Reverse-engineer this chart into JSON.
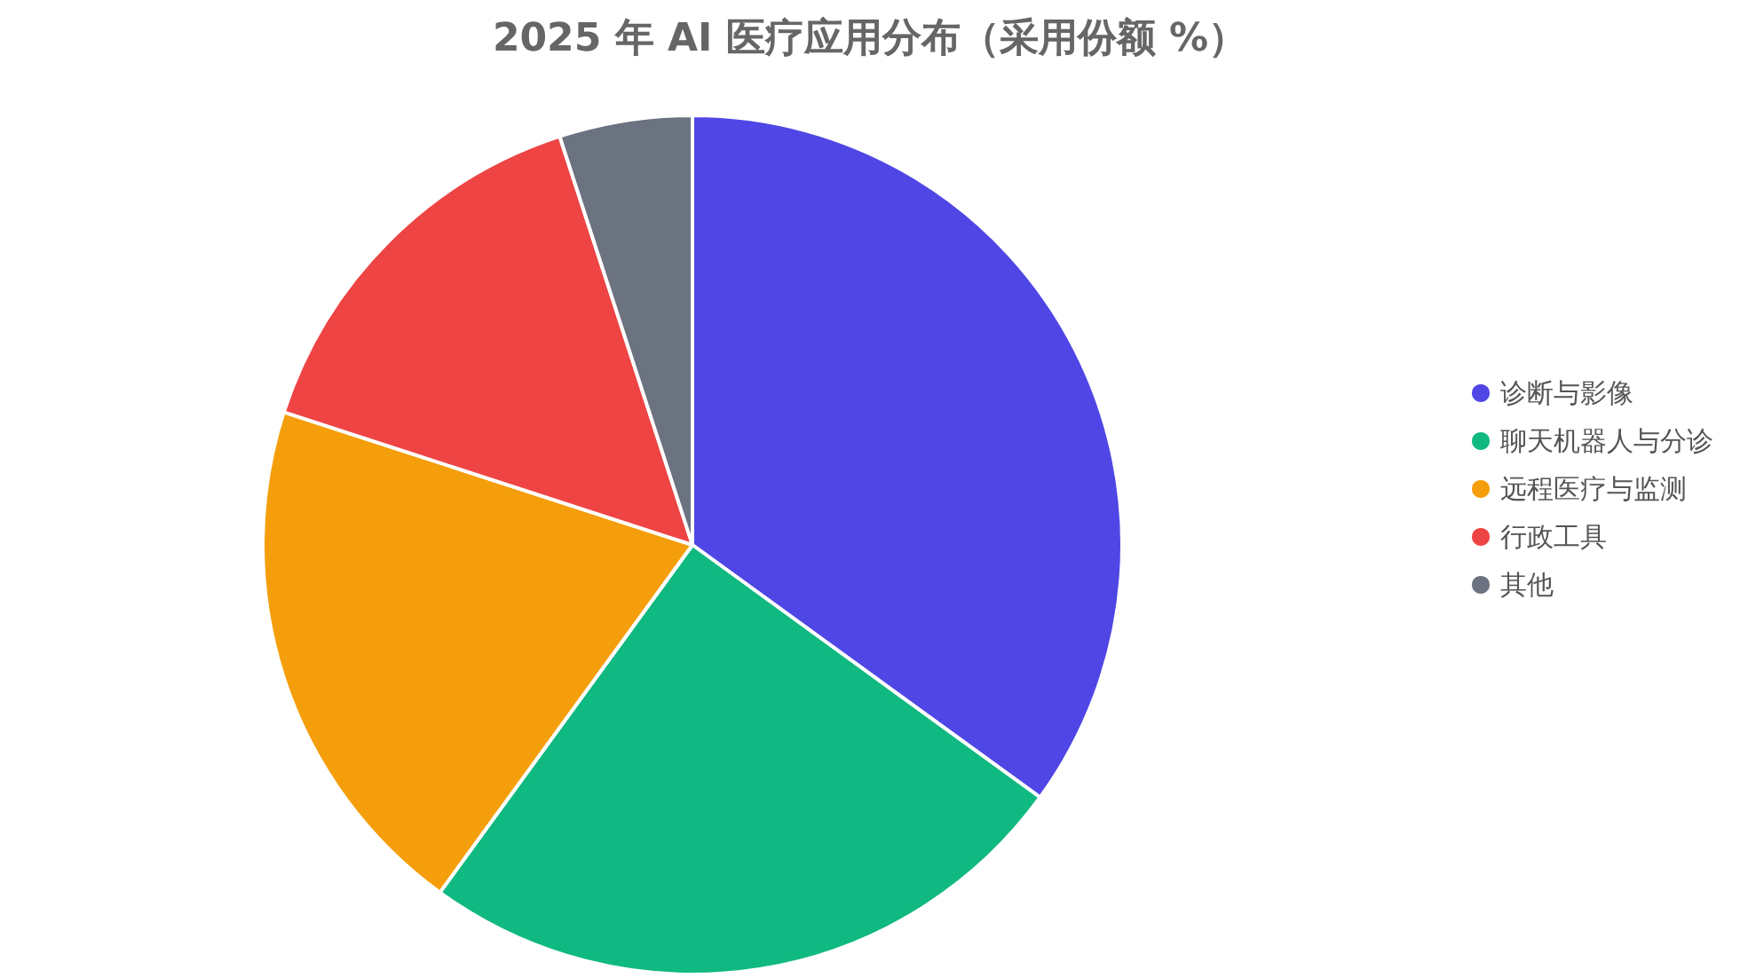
{
  "chart_data": {
    "type": "pie",
    "title": "2025 年 AI 医疗应用分布（采用份额 %）",
    "categories": [
      "诊断与影像",
      "聊天机器人与分诊",
      "远程医疗与监测",
      "行政工具",
      "其他"
    ],
    "values": [
      35,
      25,
      20,
      15,
      5
    ],
    "colors": [
      "#4f46e5",
      "#10b981",
      "#f59e0b",
      "#ef4444",
      "#6b7280"
    ],
    "legend": "right"
  }
}
